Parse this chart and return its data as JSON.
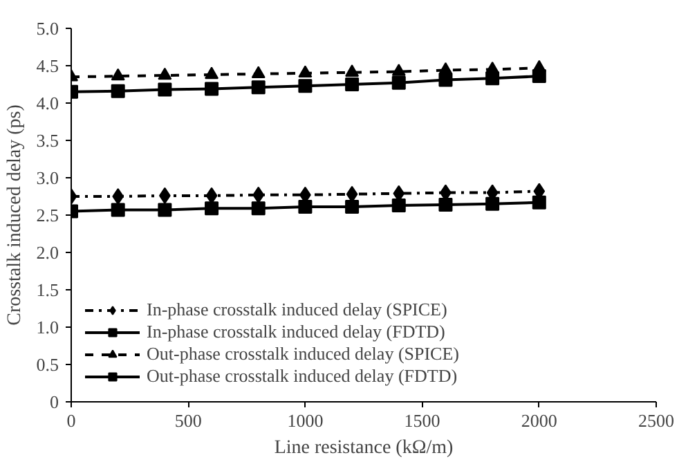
{
  "chart_data": {
    "type": "line",
    "xlabel": "Line resistance (kΩ/m)",
    "ylabel": "Crosstalk induced delay (ps)",
    "x": [
      0,
      200,
      400,
      600,
      800,
      1000,
      1200,
      1400,
      1600,
      1800,
      2000
    ],
    "xlim": [
      0,
      2500
    ],
    "xticks": [
      0,
      500,
      1000,
      1500,
      2000,
      2500
    ],
    "ylim": [
      0,
      5
    ],
    "yticks": [
      {
        "value": 0,
        "label": "0"
      },
      {
        "value": 0.5,
        "label": "0.5"
      },
      {
        "value": 1,
        "label": "1.0"
      },
      {
        "value": 1.5,
        "label": "1.5"
      },
      {
        "value": 2,
        "label": "2.0"
      },
      {
        "value": 2.5,
        "label": "2.5"
      },
      {
        "value": 3,
        "label": "3.0"
      },
      {
        "value": 3.5,
        "label": "3.5"
      },
      {
        "value": 4,
        "label": "4.0"
      },
      {
        "value": 4.5,
        "label": "4.5"
      },
      {
        "value": 5,
        "label": "5.0"
      }
    ],
    "grid": false,
    "legend": "bottom left",
    "series": [
      {
        "name": "In-phase crosstalk induced delay (SPICE)",
        "color": "#000000",
        "marker": "diamond",
        "line_style": "dashdot",
        "values": [
          2.75,
          2.75,
          2.76,
          2.76,
          2.77,
          2.77,
          2.78,
          2.79,
          2.8,
          2.8,
          2.82
        ]
      },
      {
        "name": "In-phase crosstalk induced delay (FDTD)",
        "color": "#000000",
        "marker": "square",
        "line_style": "solid",
        "values": [
          2.55,
          2.57,
          2.57,
          2.59,
          2.59,
          2.61,
          2.61,
          2.63,
          2.64,
          2.65,
          2.67
        ]
      },
      {
        "name": "Out-phase crosstalk induced delay (SPICE)",
        "color": "#000000",
        "marker": "triangle",
        "line_style": "dashed",
        "values": [
          4.35,
          4.36,
          4.37,
          4.38,
          4.39,
          4.4,
          4.41,
          4.42,
          4.44,
          4.45,
          4.47
        ]
      },
      {
        "name": "Out-phase crosstalk induced delay (FDTD)",
        "color": "#000000",
        "marker": "square",
        "line_style": "solid",
        "values": [
          4.15,
          4.16,
          4.18,
          4.19,
          4.21,
          4.23,
          4.25,
          4.27,
          4.31,
          4.33,
          4.36
        ]
      }
    ]
  }
}
